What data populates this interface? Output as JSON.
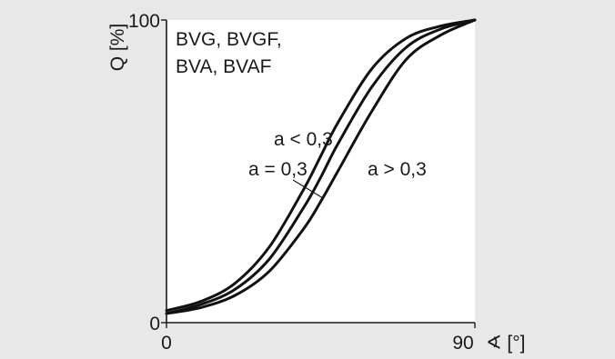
{
  "chart_data": {
    "type": "line",
    "ylabel": "Q [%]",
    "xlabel": "∢ [°]",
    "xlim": [
      0,
      90
    ],
    "ylim": [
      0,
      100
    ],
    "x_ticks": [
      "0",
      "90"
    ],
    "y_ticks": [
      "0",
      "100"
    ],
    "legend_lines": [
      "BVG, BVGF,",
      "BVA, BVAF"
    ],
    "grid": false,
    "series": [
      {
        "name": "a < 0,3",
        "x": [
          0,
          10,
          20,
          30,
          40,
          45,
          50,
          60,
          70,
          80,
          90
        ],
        "y": [
          4,
          7,
          13,
          25,
          44,
          55,
          66,
          84,
          94,
          98,
          100
        ]
      },
      {
        "name": "a = 0,3",
        "x": [
          0,
          10,
          20,
          30,
          40,
          45,
          50,
          60,
          70,
          80,
          90
        ],
        "y": [
          3,
          6,
          11,
          21,
          38,
          48,
          59,
          78,
          91,
          97,
          100
        ]
      },
      {
        "name": "a > 0,3",
        "x": [
          0,
          10,
          20,
          30,
          40,
          45,
          50,
          60,
          70,
          80,
          90
        ],
        "y": [
          3,
          5,
          9,
          17,
          31,
          40,
          50,
          70,
          87,
          95,
          100
        ]
      }
    ],
    "annotations": [
      "a < 0,3",
      "a = 0,3",
      "a > 0,3"
    ]
  }
}
